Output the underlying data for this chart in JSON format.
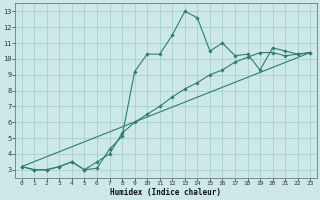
{
  "title": "",
  "xlabel": "Humidex (Indice chaleur)",
  "bg_color": "#cce8e8",
  "line_color": "#2e7d6e",
  "grid_color": "#aacfcf",
  "xlim": [
    -0.5,
    23.5
  ],
  "ylim": [
    2.5,
    13.5
  ],
  "xticks": [
    0,
    1,
    2,
    3,
    4,
    5,
    6,
    7,
    8,
    9,
    10,
    11,
    12,
    13,
    14,
    15,
    16,
    17,
    18,
    19,
    20,
    21,
    22,
    23
  ],
  "yticks": [
    3,
    4,
    5,
    6,
    7,
    8,
    9,
    10,
    11,
    12,
    13
  ],
  "curve1_x": [
    0,
    1,
    2,
    3,
    4,
    5,
    6,
    7,
    8,
    9,
    10,
    11,
    12,
    13,
    14,
    15,
    16,
    17,
    18,
    19,
    20,
    21,
    22,
    23
  ],
  "curve1_y": [
    3.2,
    3.0,
    3.0,
    3.2,
    3.5,
    3.0,
    3.1,
    4.3,
    5.1,
    9.2,
    10.3,
    10.3,
    11.5,
    13.0,
    12.6,
    10.5,
    11.0,
    10.2,
    10.3,
    9.3,
    10.7,
    10.5,
    10.3,
    10.4
  ],
  "curve2_x": [
    0,
    1,
    2,
    3,
    4,
    5,
    6,
    7,
    8,
    9,
    10,
    11,
    12,
    13,
    14,
    15,
    16,
    17,
    18,
    19,
    20,
    21,
    22,
    23
  ],
  "curve2_y": [
    3.2,
    3.0,
    3.0,
    3.2,
    3.5,
    3.0,
    3.5,
    4.0,
    5.3,
    6.0,
    6.5,
    7.0,
    7.6,
    8.1,
    8.5,
    9.0,
    9.3,
    9.8,
    10.1,
    10.4,
    10.4,
    10.2,
    10.3,
    10.4
  ],
  "line_x": [
    0,
    23
  ],
  "line_y": [
    3.2,
    10.4
  ]
}
